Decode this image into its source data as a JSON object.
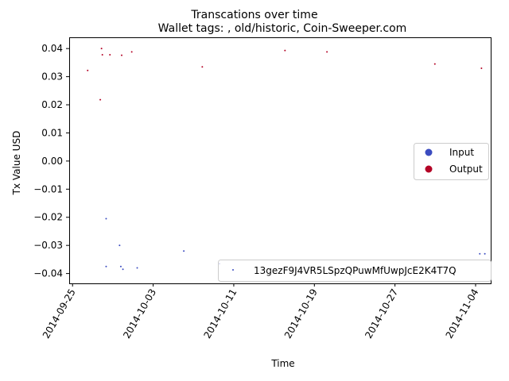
{
  "chart_data": {
    "type": "scatter",
    "title": "Transcations over time",
    "subtitle": "Wallet tags: , old/historic, Coin-Sweeper.com",
    "xlabel": "Time",
    "ylabel": "Tx Value USD",
    "xlim": [
      "2014-09-24T16:00",
      "2014-11-05T12:00"
    ],
    "ylim": [
      -0.0435,
      0.044
    ],
    "x_ticks": [
      "2014-09-25",
      "2014-10-03",
      "2014-10-11",
      "2014-10-19",
      "2014-10-27",
      "2014-11-04"
    ],
    "y_ticks": [
      0.04,
      0.03,
      0.02,
      0.01,
      0.0,
      -0.01,
      -0.02,
      -0.03,
      -0.04
    ],
    "y_tick_labels": [
      "0.04",
      "0.03",
      "0.02",
      "0.01",
      "0.00",
      "−0.01",
      "−0.02",
      "−0.03",
      "−0.04"
    ],
    "grid": false,
    "series": [
      {
        "name": "Input",
        "color": "#3b4cc0",
        "points": [
          {
            "x": "2014-09-28T08:00",
            "y": -0.0205
          },
          {
            "x": "2014-09-28T08:00",
            "y": -0.0375
          },
          {
            "x": "2014-09-29T16:00",
            "y": -0.03
          },
          {
            "x": "2014-09-29T19:00",
            "y": -0.0375
          },
          {
            "x": "2014-09-30T00:00",
            "y": -0.0385
          },
          {
            "x": "2014-10-01T10:00",
            "y": -0.038
          },
          {
            "x": "2014-10-06T01:00",
            "y": -0.032
          },
          {
            "x": "2014-10-09T14:00",
            "y": -0.0365
          },
          {
            "x": "2014-11-04T10:00",
            "y": -0.033
          },
          {
            "x": "2014-11-04T22:00",
            "y": -0.033
          }
        ]
      },
      {
        "name": "Output",
        "color": "#b40426",
        "points": [
          {
            "x": "2014-09-26T12:00",
            "y": 0.0322
          },
          {
            "x": "2014-09-27T18:00",
            "y": 0.0218
          },
          {
            "x": "2014-09-27T21:00",
            "y": 0.04
          },
          {
            "x": "2014-09-27T23:00",
            "y": 0.0378
          },
          {
            "x": "2014-09-28T17:00",
            "y": 0.0378
          },
          {
            "x": "2014-09-29T21:00",
            "y": 0.0376
          },
          {
            "x": "2014-09-30T21:00",
            "y": 0.0388
          },
          {
            "x": "2014-10-07T21:00",
            "y": 0.0335
          },
          {
            "x": "2014-10-16T02:00",
            "y": 0.0393
          },
          {
            "x": "2014-10-20T06:00",
            "y": 0.0388
          },
          {
            "x": "2014-10-30T23:00",
            "y": 0.0345
          },
          {
            "x": "2014-11-04T14:00",
            "y": 0.033
          }
        ]
      }
    ],
    "legends": [
      {
        "placement": "center-right",
        "entries": [
          {
            "label": "Input",
            "color": "#3b4cc0"
          },
          {
            "label": "Output",
            "color": "#b40426"
          }
        ]
      },
      {
        "placement": "lower-right",
        "entries": [
          {
            "label": "13gezF9J4VR5LSpzQPuwMfUwpJcE2K4T7Q",
            "color": "#3b4cc0"
          }
        ]
      }
    ]
  }
}
